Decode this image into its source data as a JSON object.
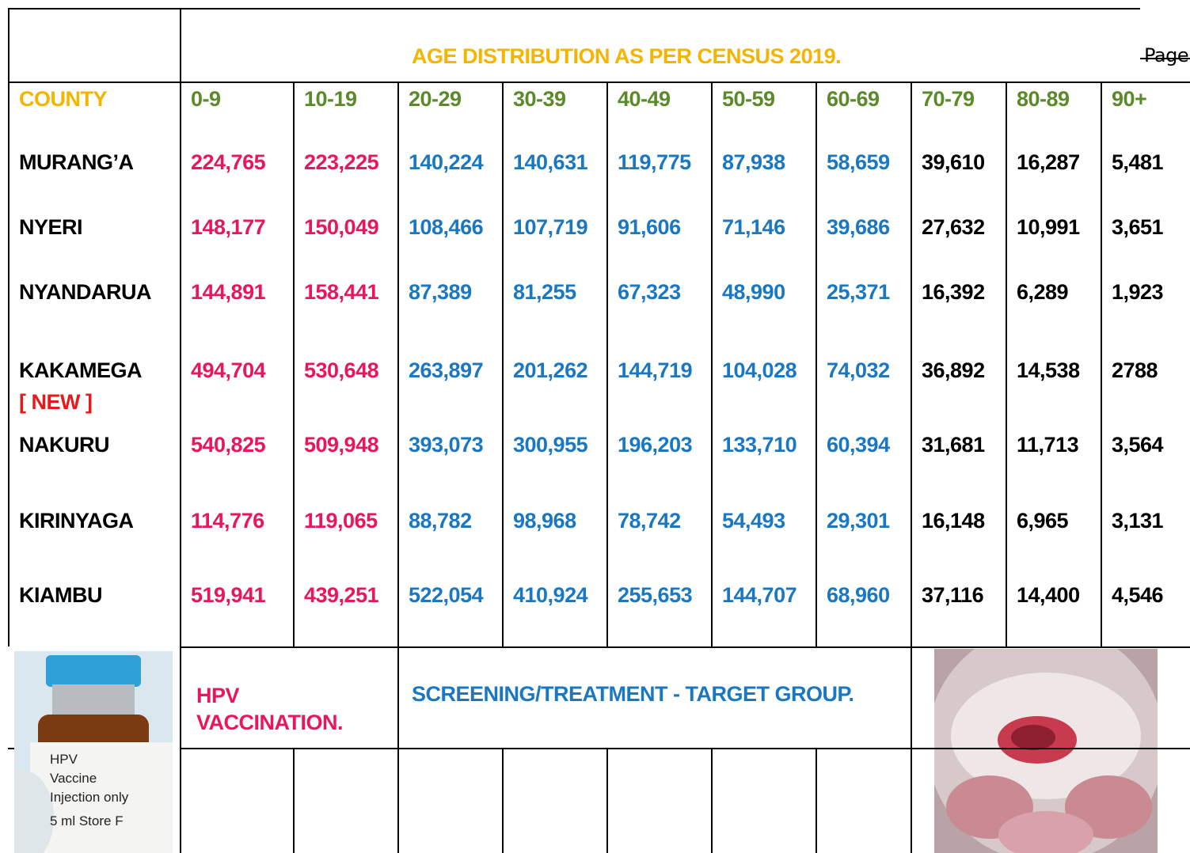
{
  "header": {
    "title": "AGE DISTRIBUTION AS PER CENSUS 2019.",
    "page_label": "Page"
  },
  "table": {
    "columns": [
      "COUNTY",
      "0-9",
      "10-19",
      "20-29",
      "30-39",
      "40-49",
      "50-59",
      "60-69",
      "70-79",
      "80-89",
      "90+"
    ],
    "rows": [
      {
        "county": "MURANG’A",
        "values": [
          "224,765",
          "223,225",
          "140,224",
          "140,631",
          "119,775",
          "87,938",
          "58,659",
          "39,610",
          "16,287",
          "5,481"
        ]
      },
      {
        "county": "NYERI",
        "values": [
          "148,177",
          "150,049",
          "108,466",
          "107,719",
          "91,606",
          "71,146",
          "39,686",
          "27,632",
          "10,991",
          "3,651"
        ]
      },
      {
        "county": "NYANDARUA",
        "values": [
          "144,891",
          "158,441",
          "87,389",
          "81,255",
          "67,323",
          "48,990",
          "25,371",
          "16,392",
          "6,289",
          "1,923"
        ]
      },
      {
        "county": "KAKAMEGA",
        "note": "[ NEW ]",
        "values": [
          "494,704",
          "530,648",
          "263,897",
          "201,262",
          "144,719",
          "104,028",
          "74,032",
          "36,892",
          "14,538",
          "2788"
        ]
      },
      {
        "county": "NAKURU",
        "values": [
          "540,825",
          "509,948",
          "393,073",
          "300,955",
          "196,203",
          "133,710",
          "60,394",
          "31,681",
          "11,713",
          "3,564"
        ]
      },
      {
        "county": "KIRINYAGA",
        "values": [
          "114,776",
          "119,065",
          "88,782",
          "98,968",
          "78,742",
          "54,493",
          "29,301",
          "16,148",
          "6,965",
          "3,131"
        ]
      },
      {
        "county": "KIAMBU",
        "values": [
          "519,941",
          "439,251",
          "522,054",
          "410,924",
          "255,653",
          "144,707",
          "68,960",
          "37,116",
          "14,400",
          "4,546"
        ]
      }
    ]
  },
  "footer": {
    "hpv": "HPV VACCINATION.",
    "screening": "SCREENING/TREATMENT - TARGET GROUP."
  },
  "vial_label": [
    "HPV",
    "Vaccine",
    "Injection only",
    "5 ml  Store F"
  ]
}
